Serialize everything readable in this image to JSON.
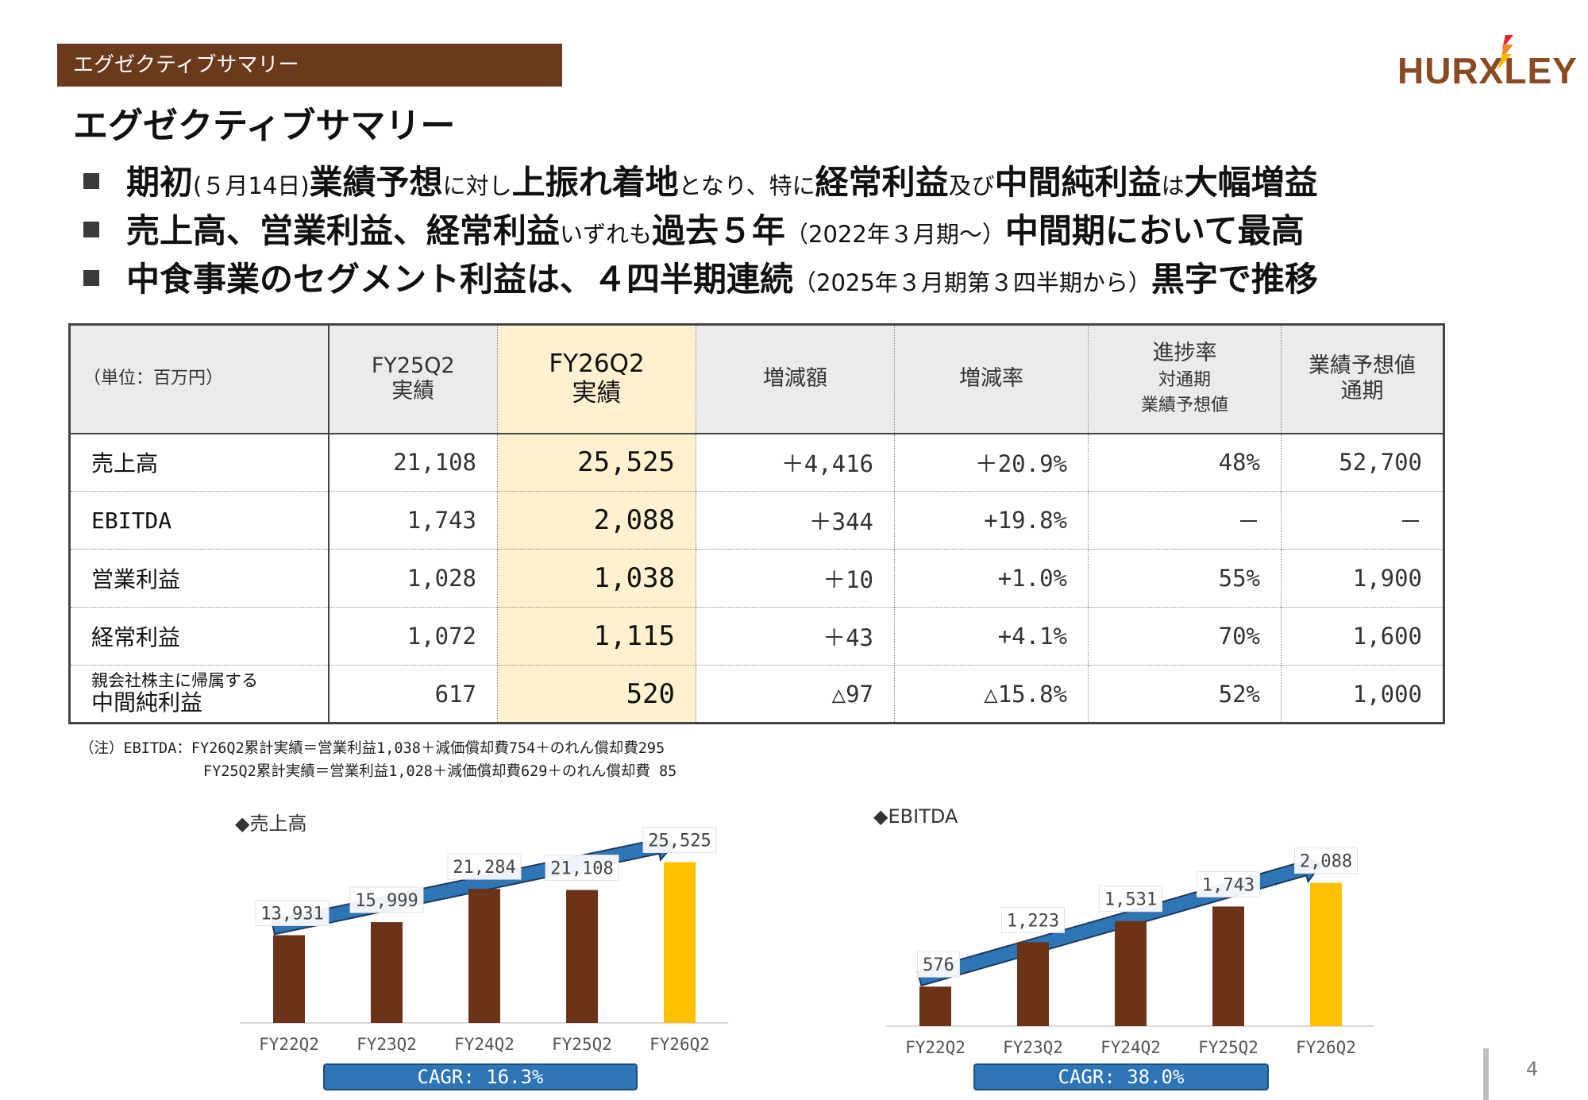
{
  "section_tab": "エグゼクティブサマリー",
  "logo_text": "HURXLEY",
  "page_title": "エグゼクティブサマリー",
  "bullets": [
    [
      {
        "text": "期初",
        "size": "t"
      },
      {
        "text": "(５月14日)",
        "size": "s"
      },
      {
        "text": "業績予想",
        "size": "t"
      },
      {
        "text": "に対し",
        "size": "s"
      },
      {
        "text": "上振れ着地",
        "size": "t"
      },
      {
        "text": "となり、特に",
        "size": "s"
      },
      {
        "text": "経常利益",
        "size": "t"
      },
      {
        "text": "及び",
        "size": "s"
      },
      {
        "text": "中間純利益",
        "size": "t"
      },
      {
        "text": "は",
        "size": "s"
      },
      {
        "text": "大幅増益",
        "size": "t"
      }
    ],
    [
      {
        "text": "売上高、営業利益、経常利益",
        "size": "t"
      },
      {
        "text": "いずれも",
        "size": "s"
      },
      {
        "text": "過去５年",
        "size": "t"
      },
      {
        "text": "（2022年３月期～）",
        "size": "s"
      },
      {
        "text": "中間期において最高",
        "size": "t"
      }
    ],
    [
      {
        "text": "中食事業のセグメント利益は、４四半期連続",
        "size": "t"
      },
      {
        "text": "（2025年３月期第３四半期から）",
        "size": "s"
      },
      {
        "text": "黒字で推移",
        "size": "t"
      }
    ]
  ],
  "table": {
    "unit": "（単位：百万円）",
    "headers": {
      "fy25": [
        "FY25Q2",
        "実績"
      ],
      "fy26": [
        "FY26Q2",
        "実績"
      ],
      "change": "増減額",
      "rate": "増減率",
      "progress": [
        "進捗率",
        "対通期",
        "業績予想値"
      ],
      "forecast": [
        "業績予想値",
        "通期"
      ]
    },
    "rows": [
      {
        "label": "売上高",
        "fy25": "21,108",
        "fy26": "25,525",
        "change": "＋4,416",
        "rate": "＋20.9%",
        "progress": "48%",
        "forecast": "52,700"
      },
      {
        "label": "EBITDA",
        "fy25": "1,743",
        "fy26": "2,088",
        "change": "＋344",
        "rate": "+19.8%",
        "progress": "－",
        "forecast": "－"
      },
      {
        "label": "営業利益",
        "fy25": "1,028",
        "fy26": "1,038",
        "change": "＋10",
        "rate": "+1.0%",
        "progress": "55%",
        "forecast": "1,900"
      },
      {
        "label": "経常利益",
        "fy25": "1,072",
        "fy26": "1,115",
        "change": "＋43",
        "rate": "+4.1%",
        "progress": "70%",
        "forecast": "1,600"
      },
      {
        "label_small": "親会社株主に帰属する",
        "label": "中間純利益",
        "fy25": "617",
        "fy26": "520",
        "change": "△97",
        "rate": "△15.8%",
        "progress": "52%",
        "forecast": "1,000"
      }
    ]
  },
  "note_lines": [
    "（注）EBITDA：FY26Q2累計実績＝営業利益1,038＋減価償却費754＋のれん償却費295",
    "              FY25Q2累計実績＝営業利益1,028＋減価償却費629＋のれん償却費 85"
  ],
  "chart_data": [
    {
      "type": "bar",
      "title": "◆売上高",
      "categories": [
        "FY22Q2",
        "FY23Q2",
        "FY24Q2",
        "FY25Q2",
        "FY26Q2"
      ],
      "values": [
        13931,
        15999,
        21284,
        21108,
        25525
      ],
      "value_labels": [
        "13,931",
        "15,999",
        "21,284",
        "21,108",
        "25,525"
      ],
      "ylim": [
        0,
        30000
      ],
      "colors": [
        "#6b3318",
        "#6b3318",
        "#6b3318",
        "#6b3318",
        "#ffc000"
      ],
      "cagr": "CAGR: 16.3%"
    },
    {
      "type": "bar",
      "title": "◆EBITDA",
      "categories": [
        "FY22Q2",
        "FY23Q2",
        "FY24Q2",
        "FY25Q2",
        "FY26Q2"
      ],
      "values": [
        576,
        1223,
        1531,
        1743,
        2088
      ],
      "value_labels": [
        "576",
        "1,223",
        "1,531",
        "1,743",
        "2,088"
      ],
      "ylim": [
        0,
        2500
      ],
      "colors": [
        "#6b3318",
        "#6b3318",
        "#6b3318",
        "#6b3318",
        "#ffc000"
      ],
      "cagr": "CAGR: 38.0%"
    }
  ],
  "page_number": "4"
}
